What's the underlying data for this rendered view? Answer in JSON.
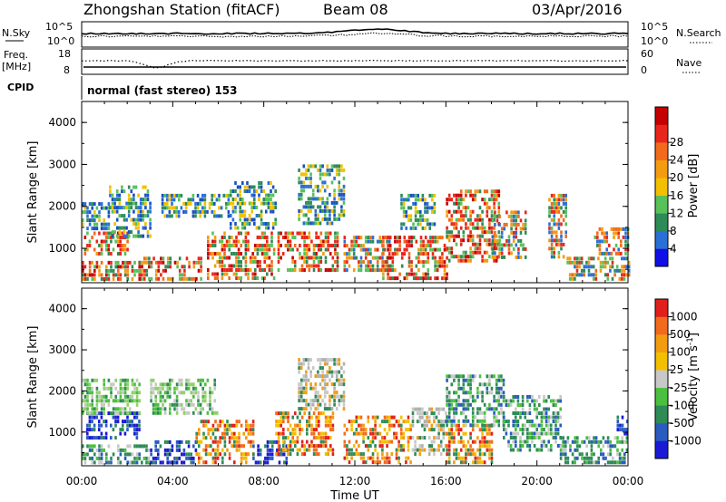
{
  "header": {
    "station": "Zhongshan Station (fitACF)",
    "beam": "Beam 08",
    "date": "03/Apr/2016"
  },
  "summary_panel": {
    "nsky_label": "N.Sky",
    "nsky_ticks": [
      "10^5",
      "10^0"
    ],
    "nsearch_label": "N.Search",
    "nsearch_ticks": [
      "10^5",
      "10^0"
    ],
    "freq_label": "Freq.",
    "freq_unit": "[MHz]",
    "freq_ticks": [
      "18",
      "8"
    ],
    "nave_label": "Nave",
    "nave_ticks": [
      "60",
      "0"
    ],
    "cpid_label": "CPID",
    "cpid_text": "normal (fast stereo) 153"
  },
  "chart_data": [
    {
      "type": "heatmap",
      "title": "",
      "ylabel": "Slant Range [km]",
      "xlabel": "",
      "ylim": [
        180,
        4500
      ],
      "y_ticks": [
        1000,
        2000,
        3000,
        4000
      ],
      "xlim_hours": [
        0,
        24
      ],
      "x_tick_labels": [
        "00:00",
        "04:00",
        "08:00",
        "12:00",
        "16:00",
        "20:00",
        "00:00"
      ],
      "colorbar": {
        "label": "Power [dB]",
        "ticks": [
          "4",
          "8",
          "12",
          "16",
          "20",
          "24",
          "28"
        ],
        "colors": [
          "#1010e6",
          "#2a6fd6",
          "#2e8b57",
          "#57c15a",
          "#f2c000",
          "#f39c12",
          "#f26b1d",
          "#e8261c",
          "#c40000"
        ]
      },
      "echo_regions": [
        {
          "t0": 0.0,
          "t1": 2.6,
          "r0": 250,
          "r1": 700,
          "level": "high"
        },
        {
          "t0": 0.1,
          "t1": 2.0,
          "r0": 900,
          "r1": 1400,
          "level": "high"
        },
        {
          "t0": 0.0,
          "t1": 1.2,
          "r0": 1500,
          "r1": 2100,
          "level": "low"
        },
        {
          "t0": 1.2,
          "t1": 3.0,
          "r0": 1300,
          "r1": 2500,
          "level": "low"
        },
        {
          "t0": 2.5,
          "t1": 5.2,
          "r0": 250,
          "r1": 800,
          "level": "high"
        },
        {
          "t0": 3.5,
          "t1": 6.5,
          "r0": 1800,
          "r1": 2300,
          "level": "low"
        },
        {
          "t0": 5.5,
          "t1": 8.5,
          "r0": 250,
          "r1": 1400,
          "level": "high"
        },
        {
          "t0": 6.5,
          "t1": 8.5,
          "r0": 1500,
          "r1": 2600,
          "level": "low"
        },
        {
          "t0": 8.6,
          "t1": 11.2,
          "r0": 500,
          "r1": 1400,
          "level": "high"
        },
        {
          "t0": 9.5,
          "t1": 11.5,
          "r0": 1600,
          "r1": 3000,
          "level": "low"
        },
        {
          "t0": 11.5,
          "t1": 13.5,
          "r0": 500,
          "r1": 1300,
          "level": "mid"
        },
        {
          "t0": 13.2,
          "t1": 16.0,
          "r0": 250,
          "r1": 1300,
          "level": "high"
        },
        {
          "t0": 14.0,
          "t1": 15.5,
          "r0": 1500,
          "r1": 2300,
          "level": "low"
        },
        {
          "t0": 16.0,
          "t1": 18.3,
          "r0": 700,
          "r1": 2400,
          "level": "high"
        },
        {
          "t0": 18.0,
          "t1": 19.5,
          "r0": 800,
          "r1": 1900,
          "level": "mid"
        },
        {
          "t0": 20.5,
          "t1": 21.3,
          "r0": 800,
          "r1": 2300,
          "level": "mid"
        },
        {
          "t0": 21.3,
          "t1": 24.0,
          "r0": 250,
          "r1": 800,
          "level": "mid"
        },
        {
          "t0": 22.5,
          "t1": 24.0,
          "r0": 900,
          "r1": 1500,
          "level": "mid"
        }
      ]
    },
    {
      "type": "heatmap",
      "title": "",
      "ylabel": "Slant Range [km]",
      "xlabel": "Time UT",
      "ylim": [
        180,
        4500
      ],
      "y_ticks": [
        1000,
        2000,
        3000,
        4000
      ],
      "xlim_hours": [
        0,
        24
      ],
      "x_tick_labels": [
        "00:00",
        "04:00",
        "08:00",
        "12:00",
        "16:00",
        "20:00",
        "00:00"
      ],
      "colorbar": {
        "label": "Velocity [m s^-1]",
        "ticks": [
          "1000",
          "500",
          "100",
          "25",
          "-25",
          "-100",
          "-500",
          "-1000"
        ],
        "colors": [
          "#1a1ad6",
          "#2a5bbf",
          "#2e8b57",
          "#4bbf3f",
          "#c8c8c8",
          "#f2c000",
          "#f39c12",
          "#f26b1d",
          "#e0201c"
        ]
      },
      "echo_regions": [
        {
          "t0": 0.0,
          "t1": 3.0,
          "r0": 250,
          "r1": 700,
          "level": "green"
        },
        {
          "t0": 0.2,
          "t1": 2.5,
          "r0": 900,
          "r1": 1500,
          "level": "blue"
        },
        {
          "t0": 0.0,
          "t1": 2.5,
          "r0": 1500,
          "r1": 2300,
          "level": "lightgreen"
        },
        {
          "t0": 3.0,
          "t1": 5.0,
          "r0": 300,
          "r1": 800,
          "level": "blue"
        },
        {
          "t0": 3.0,
          "t1": 6.0,
          "r0": 1500,
          "r1": 2300,
          "level": "lightgreen"
        },
        {
          "t0": 5.0,
          "t1": 7.5,
          "r0": 300,
          "r1": 1300,
          "level": "orange"
        },
        {
          "t0": 7.5,
          "t1": 9.0,
          "r0": 300,
          "r1": 800,
          "level": "blue"
        },
        {
          "t0": 8.5,
          "t1": 11.0,
          "r0": 500,
          "r1": 1500,
          "level": "orange"
        },
        {
          "t0": 9.5,
          "t1": 11.5,
          "r0": 1600,
          "r1": 2800,
          "level": "gray"
        },
        {
          "t0": 11.5,
          "t1": 14.5,
          "r0": 300,
          "r1": 1400,
          "level": "orange"
        },
        {
          "t0": 14.5,
          "t1": 16.0,
          "r0": 500,
          "r1": 1600,
          "level": "gray"
        },
        {
          "t0": 16.0,
          "t1": 18.0,
          "r0": 300,
          "r1": 1200,
          "level": "orange"
        },
        {
          "t0": 16.0,
          "t1": 18.5,
          "r0": 1200,
          "r1": 2400,
          "level": "green"
        },
        {
          "t0": 18.5,
          "t1": 21.0,
          "r0": 600,
          "r1": 1900,
          "level": "green"
        },
        {
          "t0": 21.0,
          "t1": 24.0,
          "r0": 250,
          "r1": 900,
          "level": "green"
        },
        {
          "t0": 23.5,
          "t1": 24.0,
          "r0": 1000,
          "r1": 1400,
          "level": "blue"
        }
      ]
    }
  ]
}
